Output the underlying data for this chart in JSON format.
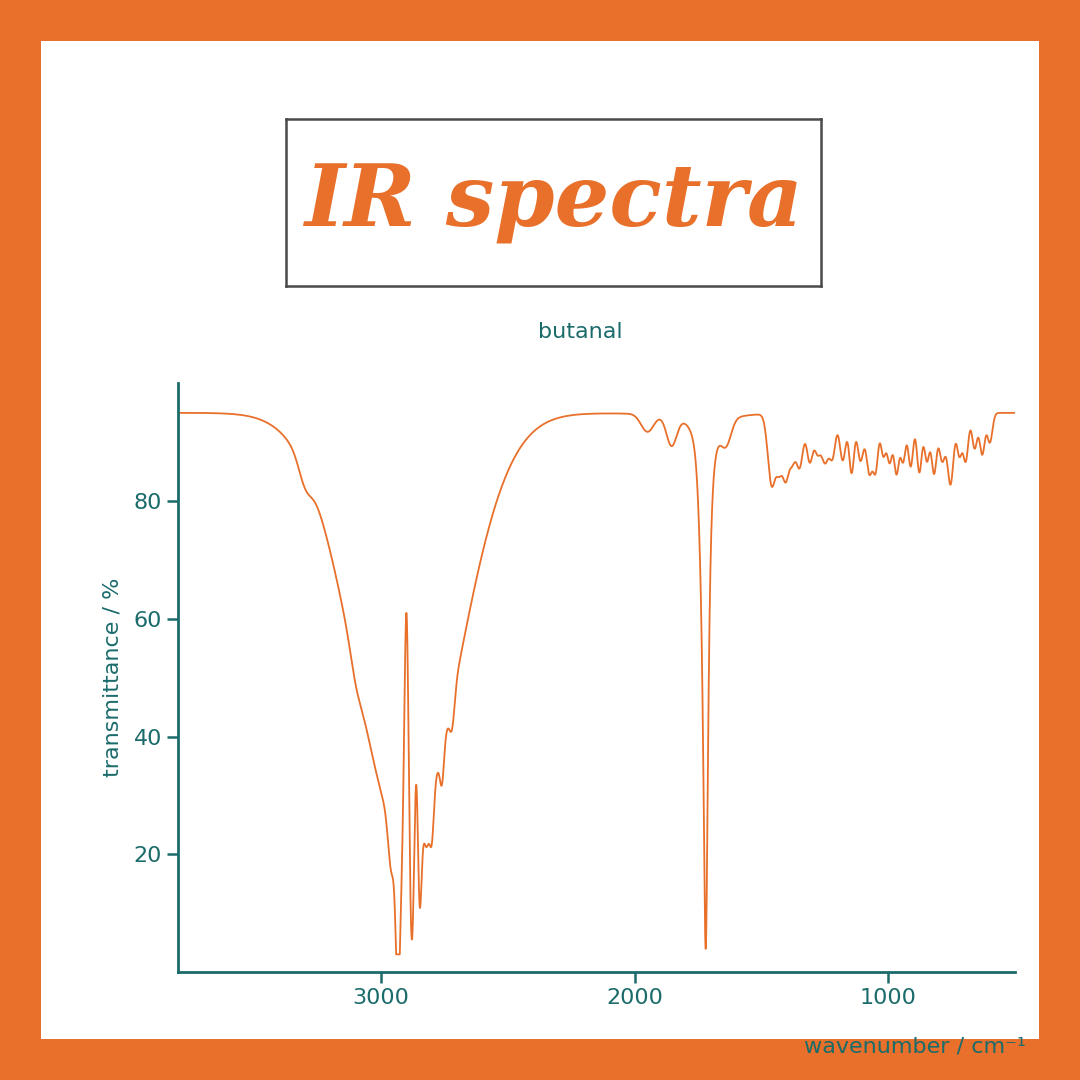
{
  "title": "IR spectra",
  "compound": "butanal",
  "title_color": "#E8702A",
  "teal_color": "#1B6B6B",
  "orange_color": "#E8702A",
  "background": "#FFFFFF",
  "border_color": "#E8702A",
  "ylabel": "transmittance / %",
  "xlabel": "wavenumber / cm⁻¹",
  "xlim": [
    3800,
    500
  ],
  "ylim": [
    0,
    100
  ],
  "yticks": [
    20,
    40,
    60,
    80
  ],
  "xticks": [
    3000,
    2000,
    1000
  ],
  "title_fontsize": 62,
  "label_fontsize": 16,
  "tick_fontsize": 16
}
